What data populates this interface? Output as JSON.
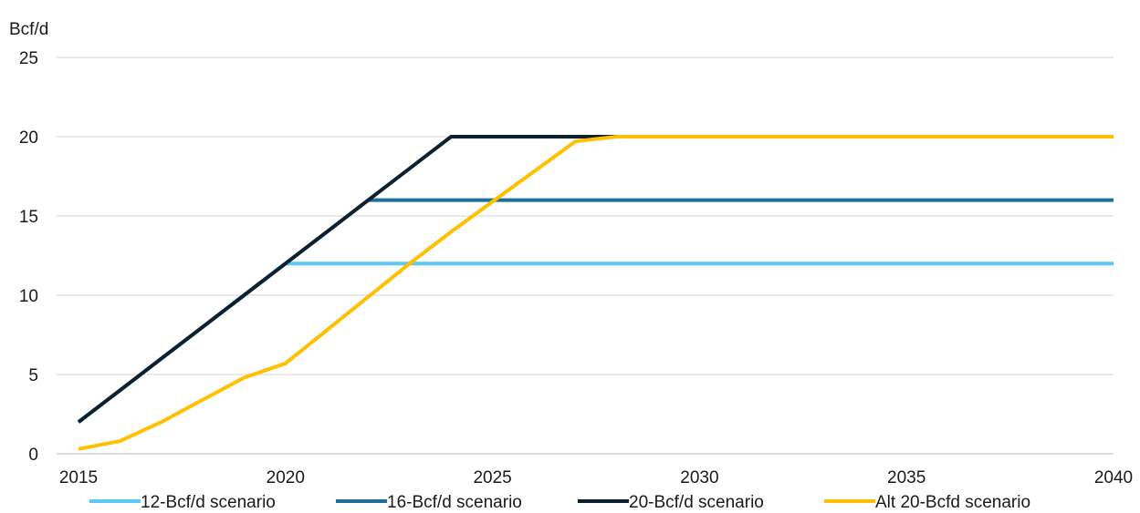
{
  "chart_data": {
    "type": "line",
    "title": "",
    "ylabel": "Bcf/d",
    "xlabel": "",
    "xlim": [
      2015,
      2040
    ],
    "ylim": [
      0,
      25
    ],
    "xticks": [
      2015,
      2020,
      2025,
      2030,
      2035,
      2040
    ],
    "yticks": [
      0,
      5,
      10,
      15,
      20,
      25
    ],
    "grid": "horizontal",
    "legend_position": "bottom",
    "series": [
      {
        "name": "12-Bcf/d scenario",
        "color": "#5bc8f5",
        "points": [
          [
            2015,
            2
          ],
          [
            2016,
            4
          ],
          [
            2017,
            6
          ],
          [
            2018,
            8
          ],
          [
            2019,
            10
          ],
          [
            2020,
            12
          ],
          [
            2040,
            12
          ]
        ]
      },
      {
        "name": "16-Bcf/d scenario",
        "color": "#1f6f9a",
        "points": [
          [
            2015,
            2
          ],
          [
            2016,
            4
          ],
          [
            2017,
            6
          ],
          [
            2018,
            8
          ],
          [
            2019,
            10
          ],
          [
            2020,
            12
          ],
          [
            2021,
            14
          ],
          [
            2022,
            16
          ],
          [
            2040,
            16
          ]
        ]
      },
      {
        "name": "20-Bcf/d scenario",
        "color": "#0d2030",
        "points": [
          [
            2015,
            2
          ],
          [
            2016,
            4
          ],
          [
            2017,
            6
          ],
          [
            2018,
            8
          ],
          [
            2019,
            10
          ],
          [
            2020,
            12
          ],
          [
            2021,
            14
          ],
          [
            2022,
            16
          ],
          [
            2023,
            18
          ],
          [
            2024,
            20
          ],
          [
            2040,
            20
          ]
        ]
      },
      {
        "name": "Alt 20-Bcfd scenario",
        "color": "#ffc000",
        "points": [
          [
            2015,
            0.3
          ],
          [
            2016,
            0.8
          ],
          [
            2017,
            2.0
          ],
          [
            2018,
            3.4
          ],
          [
            2019,
            4.8
          ],
          [
            2020,
            5.7
          ],
          [
            2021,
            7.8
          ],
          [
            2022,
            9.9
          ],
          [
            2023,
            12.0
          ],
          [
            2024,
            14.0
          ],
          [
            2025,
            15.9
          ],
          [
            2026,
            17.8
          ],
          [
            2027,
            19.7
          ],
          [
            2028,
            20
          ],
          [
            2040,
            20
          ]
        ]
      }
    ]
  }
}
